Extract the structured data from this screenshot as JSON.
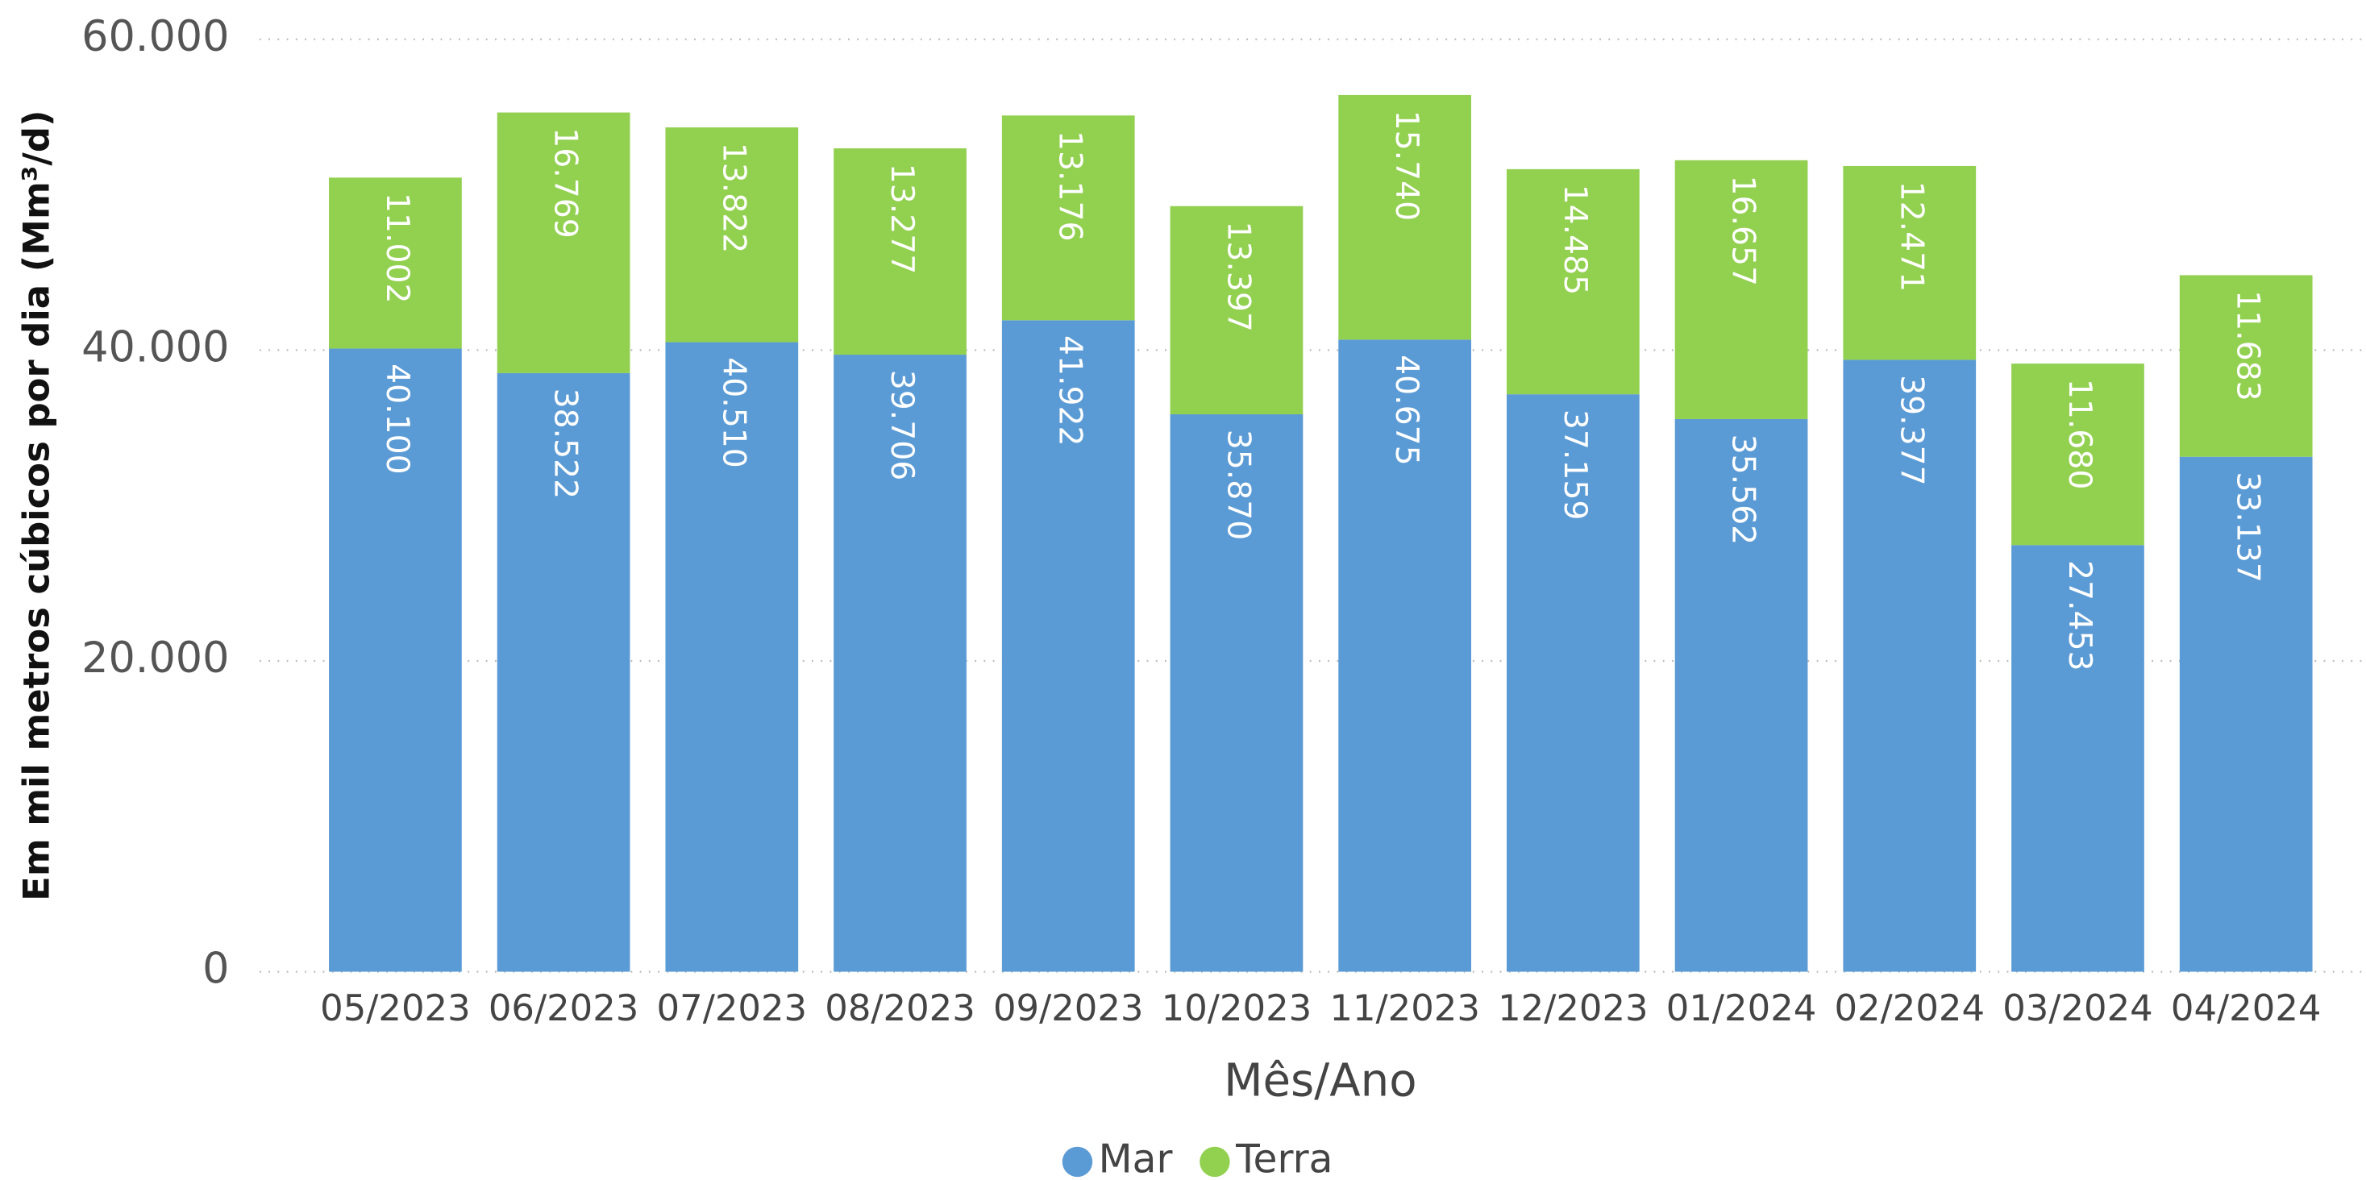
{
  "chart_data": {
    "type": "stacked_bar",
    "x_label": "Mês/Ano",
    "y_label": "Em mil metros cúbicos por dia (Mm³/d)",
    "categories": [
      "05/2023",
      "06/2023",
      "07/2023",
      "08/2023",
      "09/2023",
      "10/2023",
      "11/2023",
      "12/2023",
      "01/2024",
      "02/2024",
      "03/2024",
      "04/2024"
    ],
    "series": [
      {
        "name": "Mar",
        "color": "#5b9bd5",
        "values": [
          40100,
          38522,
          40510,
          39706,
          41922,
          35870,
          40675,
          37159,
          35562,
          39377,
          27453,
          33137
        ],
        "value_labels": [
          "40.100",
          "38.522",
          "40.510",
          "39.706",
          "41.922",
          "35.870",
          "40.675",
          "37.159",
          "35.562",
          "39.377",
          "27.453",
          "33.137"
        ]
      },
      {
        "name": "Terra",
        "color": "#92d050",
        "values": [
          11002,
          16769,
          13822,
          13277,
          13176,
          13397,
          15740,
          14485,
          16657,
          12471,
          11680,
          11683
        ],
        "value_labels": [
          "11.002",
          "16.769",
          "13.822",
          "13.277",
          "13.176",
          "13.397",
          "15.740",
          "14.485",
          "16.657",
          "12.471",
          "11.680",
          "11.683"
        ]
      }
    ],
    "ylim": [
      0,
      60000
    ],
    "yticks": [
      0,
      {
        "value": 20000,
        "label": "20.000"
      },
      {
        "value": 40000,
        "label": "40.000"
      },
      {
        "value": 60000,
        "label": "60.000"
      }
    ],
    "grid": true,
    "legend": "bottom"
  }
}
